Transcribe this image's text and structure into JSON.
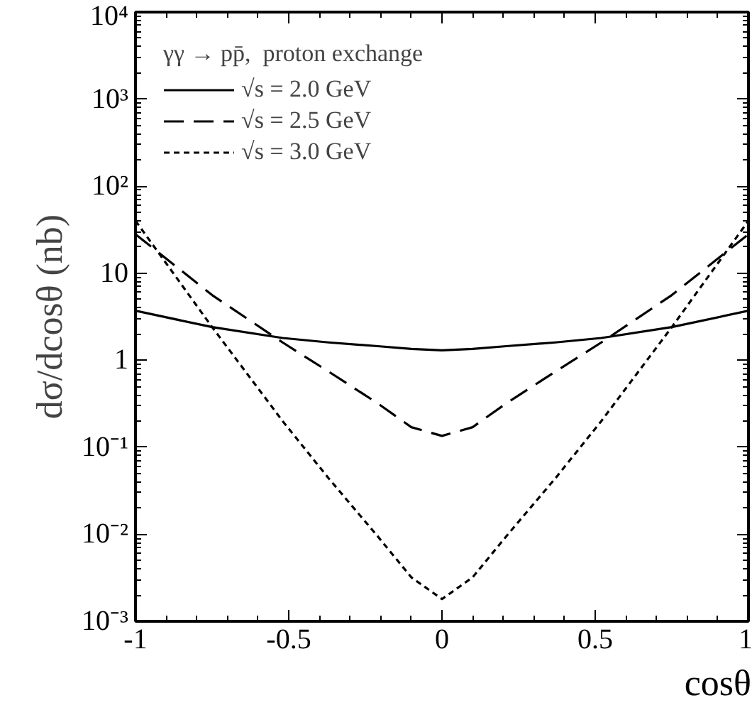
{
  "chart_data": {
    "type": "line",
    "xlabel": "cosθ",
    "ylabel": "dσ/dcosθ (nb)",
    "legend_title": "γγ → pp̄,  proton exchange",
    "log": "y",
    "legend": "top left",
    "grid": false,
    "xlim": [
      -1,
      1
    ],
    "xticks": [
      -1,
      -0.5,
      0,
      0.5,
      1
    ],
    "ylim": [
      0.001,
      10000
    ],
    "yticks": [
      {
        "value": 0.001,
        "label": "10⁻³"
      },
      {
        "value": 0.01,
        "label": "10⁻²"
      },
      {
        "value": 0.1,
        "label": "10⁻¹"
      },
      1,
      10,
      {
        "value": 100,
        "label": "10²"
      },
      {
        "value": 1000,
        "label": "10³"
      },
      {
        "value": 10000,
        "label": "10⁴"
      }
    ],
    "x": [
      -1,
      -0.75,
      -0.52,
      -0.37,
      -0.21,
      -0.1,
      0,
      0.1,
      0.21,
      0.37,
      0.52,
      0.75,
      1
    ],
    "series": [
      {
        "name": "√s = 2.0 GeV",
        "color": "#000000",
        "line_style": "solid",
        "values": [
          3.7,
          2.4,
          1.8,
          1.6,
          1.45,
          1.35,
          1.3,
          1.35,
          1.45,
          1.6,
          1.8,
          2.4,
          3.7
        ]
      },
      {
        "name": "√s = 2.5 GeV",
        "color": "#000000",
        "line_style": "dashed",
        "values": [
          28,
          5.6,
          1.6,
          0.74,
          0.32,
          0.17,
          0.135,
          0.17,
          0.32,
          0.74,
          1.6,
          5.6,
          28
        ]
      },
      {
        "name": "√s = 3.0 GeV",
        "color": "#000000",
        "line_style": "dotted",
        "values": [
          40,
          2.4,
          0.2,
          0.044,
          0.0095,
          0.0032,
          0.0018,
          0.0032,
          0.0095,
          0.044,
          0.2,
          2.4,
          40
        ]
      }
    ]
  }
}
